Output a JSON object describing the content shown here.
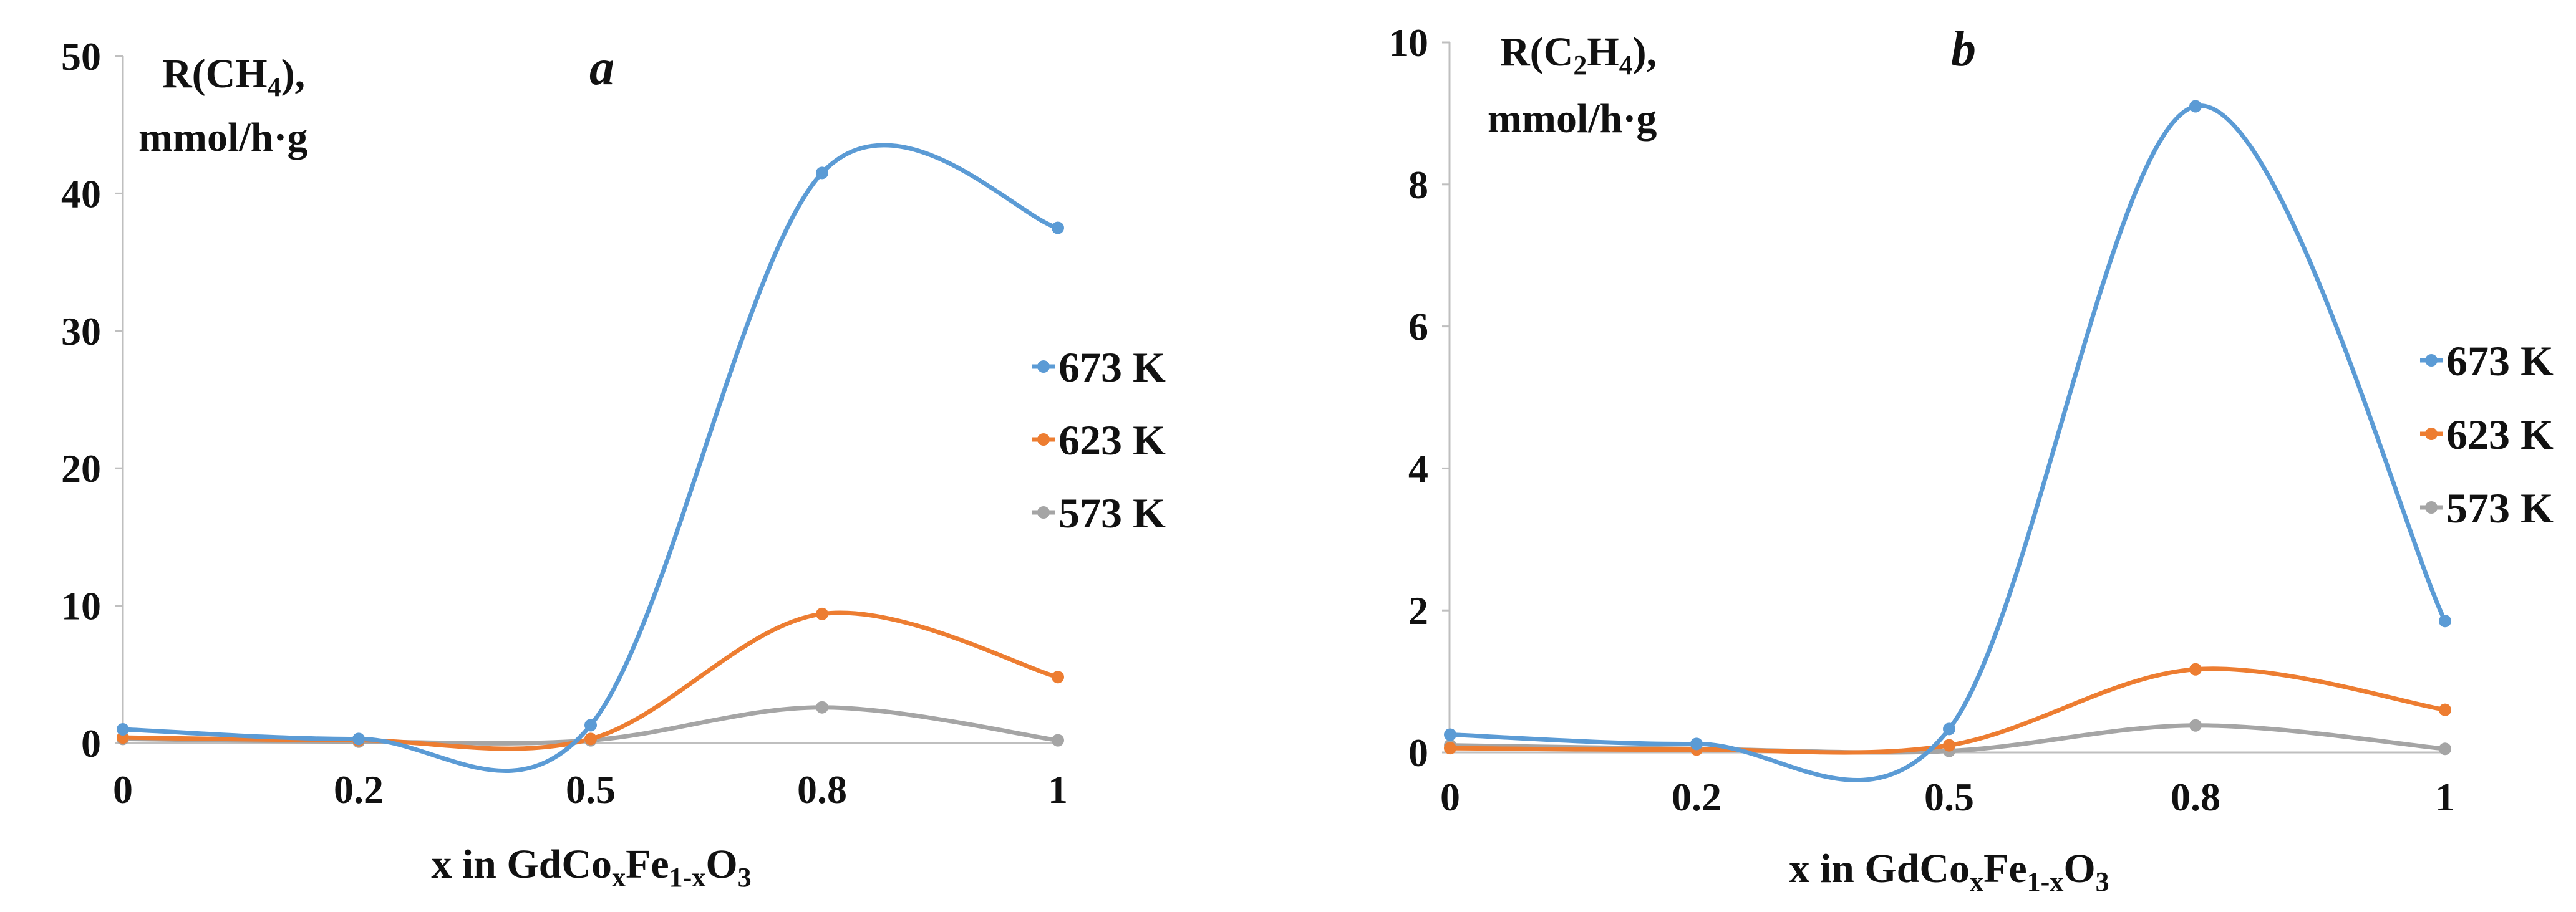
{
  "chart_data": [
    {
      "type": "line",
      "panel_letter": "a",
      "ylabel_main": "R(CH",
      "ylabel_sub": "4",
      "ylabel_close": "),",
      "ylabel_units": "mmol/h·g",
      "xlabel": {
        "pre": "x in GdCo",
        "s1": "x",
        "mid": "Fe",
        "s2": "1-x",
        "post": "O",
        "s3": "3"
      },
      "x": [
        0,
        0.2,
        0.5,
        0.8,
        1
      ],
      "x_ticks": [
        "0",
        "0.2",
        "0.5",
        "0.8",
        "1"
      ],
      "ylim": [
        0,
        50
      ],
      "y_ticks": [
        "0",
        "10",
        "20",
        "30",
        "40",
        "50"
      ],
      "series": [
        {
          "name": "673 K",
          "color": "#5b9bd5",
          "values": [
            1.0,
            0.3,
            1.3,
            41.5,
            37.5
          ]
        },
        {
          "name": "623 K",
          "color": "#ed7d31",
          "values": [
            0.4,
            0.2,
            0.3,
            9.4,
            4.8
          ]
        },
        {
          "name": "573 K",
          "color": "#a5a5a5",
          "values": [
            0.3,
            0.1,
            0.2,
            2.6,
            0.2
          ]
        }
      ]
    },
    {
      "type": "line",
      "panel_letter": "b",
      "ylabel_main": "R(C",
      "ylabel_sub": "2",
      "ylabel_mid": "H",
      "ylabel_sub2": "4",
      "ylabel_close": "),",
      "ylabel_units": "mmol/h·g",
      "xlabel": {
        "pre": "x in GdCo",
        "s1": "x",
        "mid": "Fe",
        "s2": "1-x",
        "post": "O",
        "s3": "3"
      },
      "x": [
        0,
        0.2,
        0.5,
        0.8,
        1
      ],
      "x_ticks": [
        "0",
        "0.2",
        "0.5",
        "0.8",
        "1"
      ],
      "ylim": [
        0,
        10
      ],
      "y_ticks": [
        "0",
        "2",
        "4",
        "6",
        "8",
        "10"
      ],
      "series": [
        {
          "name": "673 K",
          "color": "#5b9bd5",
          "values": [
            0.25,
            0.12,
            0.33,
            9.1,
            1.85
          ]
        },
        {
          "name": "623 K",
          "color": "#ed7d31",
          "values": [
            0.06,
            0.04,
            0.1,
            1.17,
            0.6
          ]
        },
        {
          "name": "573 K",
          "color": "#a5a5a5",
          "values": [
            0.1,
            0.05,
            0.02,
            0.38,
            0.05
          ]
        }
      ]
    }
  ]
}
